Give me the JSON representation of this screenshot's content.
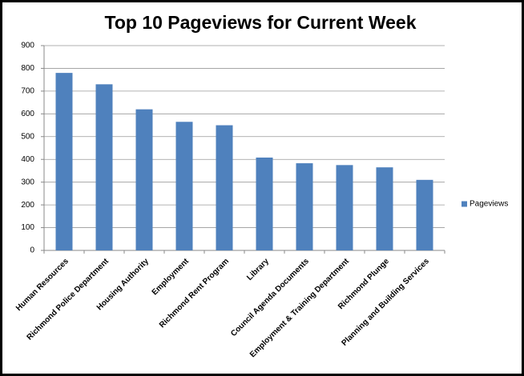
{
  "chart_data": {
    "type": "bar",
    "title": "Top 10 Pageviews for Current Week",
    "categories": [
      "Human Resources",
      "Richmond Police Department",
      "Housing Authority",
      "Employment",
      "Richmond Rent Program",
      "Library",
      "Council Agenda Documents",
      "Employment & Training Department",
      "Richmond Plunge",
      "Planning and Building Services"
    ],
    "series": [
      {
        "name": "Pageviews",
        "color": "#4f81bd",
        "values": [
          780,
          730,
          620,
          565,
          550,
          408,
          383,
          375,
          365,
          310
        ]
      }
    ],
    "ylim": [
      0,
      900
    ],
    "yticks": [
      0,
      100,
      200,
      300,
      400,
      500,
      600,
      700,
      800,
      900
    ],
    "grid": true,
    "legend": "right"
  }
}
